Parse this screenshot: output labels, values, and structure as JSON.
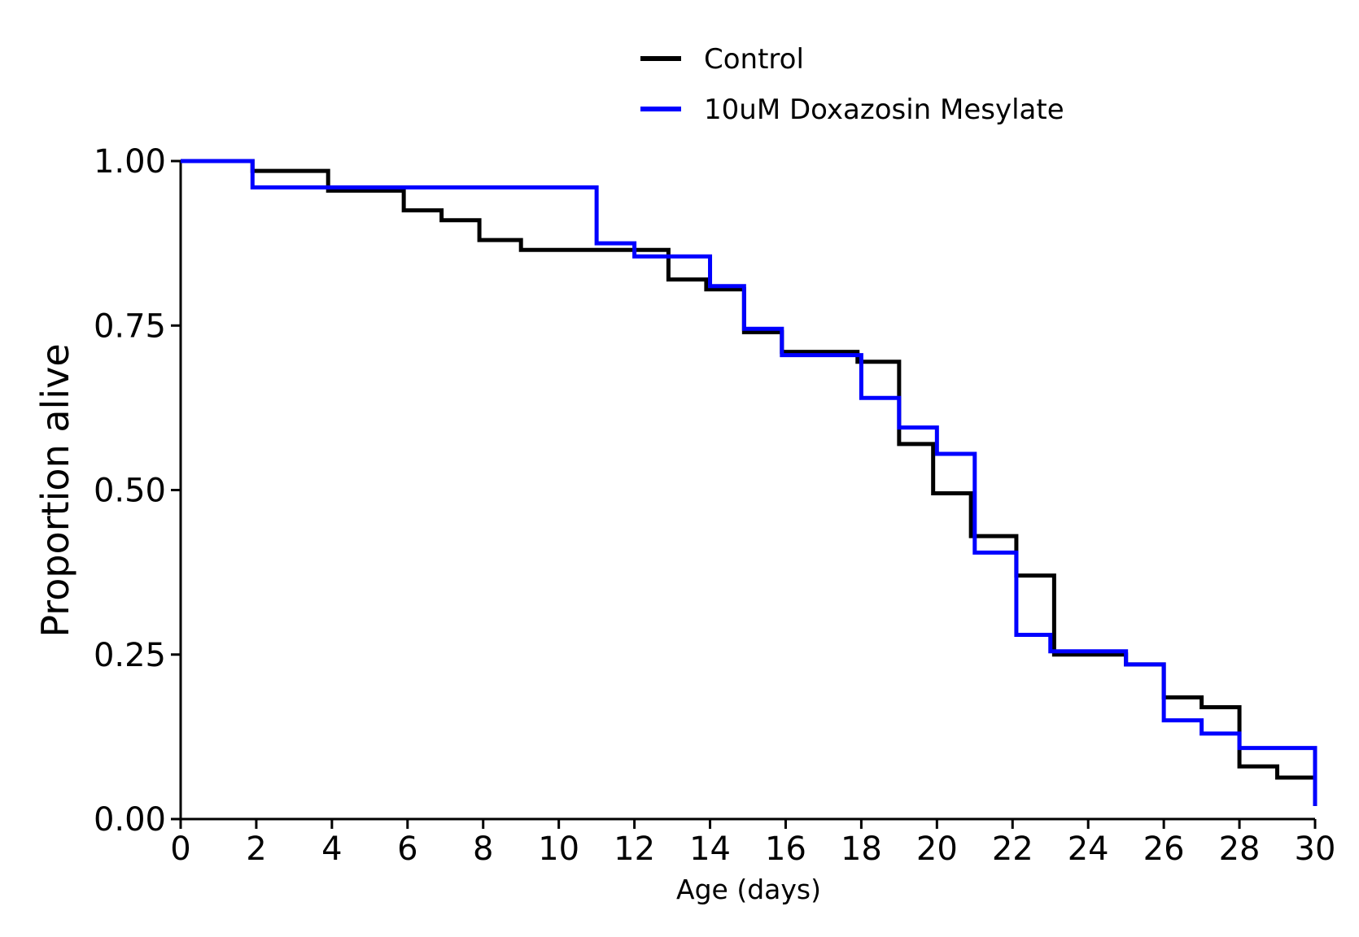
{
  "chart_data": {
    "type": "line",
    "step": true,
    "xlabel": "Age (days)",
    "ylabel": "Proportion alive",
    "xlim": [
      0,
      30
    ],
    "ylim": [
      0,
      1
    ],
    "xticks": [
      "0",
      "2",
      "4",
      "6",
      "8",
      "10",
      "12",
      "14",
      "16",
      "18",
      "20",
      "22",
      "24",
      "26",
      "28",
      "30"
    ],
    "yticks": [
      "0.00",
      "0.25",
      "0.50",
      "0.75",
      "1.00"
    ],
    "grid": false,
    "legend_position": "top-center",
    "series": [
      {
        "name": "Control",
        "color": "#000000",
        "x": [
          0,
          1.9,
          3.9,
          5.9,
          6.9,
          7.9,
          9.0,
          12.9,
          13.9,
          14.9,
          15.9,
          17.9,
          19.0,
          19.9,
          20.9,
          22.1,
          23.1,
          25.0,
          26.0,
          27.0,
          28.0,
          29.0,
          30.0
        ],
        "y": [
          1.0,
          0.985,
          0.955,
          0.925,
          0.91,
          0.88,
          0.865,
          0.82,
          0.805,
          0.74,
          0.71,
          0.695,
          0.57,
          0.495,
          0.43,
          0.37,
          0.25,
          0.235,
          0.185,
          0.17,
          0.08,
          0.063,
          0.02
        ]
      },
      {
        "name": "10uM Doxazosin Mesylate",
        "color": "#0000ff",
        "x": [
          0,
          1.9,
          11.0,
          12.0,
          14.0,
          14.9,
          15.9,
          18.0,
          19.0,
          20.0,
          21.0,
          22.1,
          23.0,
          25.0,
          26.0,
          27.0,
          28.0,
          30.0
        ],
        "y": [
          1.0,
          0.96,
          0.875,
          0.855,
          0.81,
          0.745,
          0.705,
          0.64,
          0.595,
          0.555,
          0.405,
          0.28,
          0.255,
          0.235,
          0.15,
          0.13,
          0.108,
          0.02
        ]
      }
    ]
  }
}
